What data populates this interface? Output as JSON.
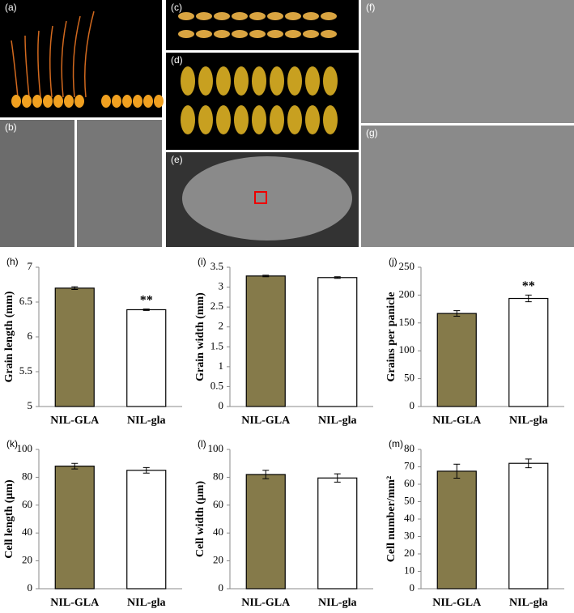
{
  "image_panels": [
    {
      "label": "(a)"
    },
    {
      "label": "(b)"
    },
    {
      "label": "(c)"
    },
    {
      "label": "(d)"
    },
    {
      "label": "(e)"
    },
    {
      "label": "(f)"
    },
    {
      "label": "(g)"
    }
  ],
  "chart_data": [
    {
      "type": "bar",
      "panel_label": "(h)",
      "y_label": "Grain length (mm)",
      "categories": [
        "NIL-GLA",
        "NIL-gla"
      ],
      "values": [
        6.7,
        6.39
      ],
      "errors": [
        0.02,
        0.01
      ],
      "colors": [
        "#857a4a",
        "#ffffff"
      ],
      "significance": [
        null,
        "**"
      ],
      "ylim": [
        5,
        7
      ],
      "yticks": [
        5,
        5.5,
        6,
        6.5,
        7
      ]
    },
    {
      "type": "bar",
      "panel_label": "(i)",
      "y_label": "Grain width (mm)",
      "categories": [
        "NIL-GLA",
        "NIL-gla"
      ],
      "values": [
        3.28,
        3.24
      ],
      "errors": [
        0.02,
        0.02
      ],
      "colors": [
        "#857a4a",
        "#ffffff"
      ],
      "significance": [
        null,
        null
      ],
      "ylim": [
        0,
        3.5
      ],
      "yticks": [
        0,
        0.5,
        1,
        1.5,
        2,
        2.5,
        3,
        3.5
      ]
    },
    {
      "type": "bar",
      "panel_label": "(j)",
      "y_label": "Grains per panicle",
      "categories": [
        "NIL-GLA",
        "NIL-gla"
      ],
      "values": [
        167,
        194
      ],
      "errors": [
        5,
        6
      ],
      "colors": [
        "#857a4a",
        "#ffffff"
      ],
      "significance": [
        null,
        "**"
      ],
      "ylim": [
        0,
        250
      ],
      "yticks": [
        0,
        50,
        100,
        150,
        200,
        250
      ]
    },
    {
      "type": "bar",
      "panel_label": "(k)",
      "y_label": "Cell length (μm)",
      "categories": [
        "NIL-GLA",
        "NIL-gla"
      ],
      "values": [
        88,
        85
      ],
      "errors": [
        2,
        2
      ],
      "colors": [
        "#857a4a",
        "#ffffff"
      ],
      "significance": [
        null,
        null
      ],
      "ylim": [
        0,
        100
      ],
      "yticks": [
        0,
        20,
        40,
        60,
        80,
        100
      ]
    },
    {
      "type": "bar",
      "panel_label": "(l)",
      "y_label": "Cell width (μm)",
      "categories": [
        "NIL-GLA",
        "NIL-gla"
      ],
      "values": [
        82,
        79.5
      ],
      "errors": [
        3,
        3
      ],
      "colors": [
        "#857a4a",
        "#ffffff"
      ],
      "significance": [
        null,
        null
      ],
      "ylim": [
        0,
        100
      ],
      "yticks": [
        0,
        20,
        40,
        60,
        80,
        100
      ]
    },
    {
      "type": "bar",
      "panel_label": "(m)",
      "y_label": "Cell number/mm²",
      "categories": [
        "NIL-GLA",
        "NIL-gla"
      ],
      "values": [
        67.5,
        72
      ],
      "errors": [
        4,
        2.5
      ],
      "colors": [
        "#857a4a",
        "#ffffff"
      ],
      "significance": [
        null,
        null
      ],
      "ylim": [
        0,
        80
      ],
      "yticks": [
        0,
        10,
        20,
        30,
        40,
        50,
        60,
        70,
        80
      ]
    }
  ]
}
